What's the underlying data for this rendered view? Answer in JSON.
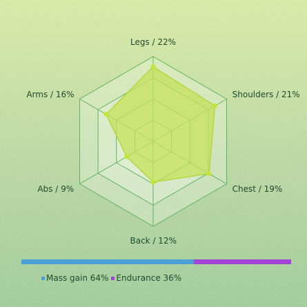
{
  "chart_data": {
    "type": "radar",
    "axes": [
      {
        "name": "Legs",
        "label": "Legs / 22%",
        "value": 22
      },
      {
        "name": "Shoulders",
        "label": "Shoulders / 21%",
        "value": 21
      },
      {
        "name": "Chest",
        "label": "Chest / 19%",
        "value": 19
      },
      {
        "name": "Back",
        "label": "Back / 12%",
        "value": 12
      },
      {
        "name": "Abs",
        "label": "Abs / 9%",
        "value": 9
      },
      {
        "name": "Arms",
        "label": "Arms / 16%",
        "value": 16
      }
    ],
    "range": [
      0,
      25
    ],
    "ring_count": 4,
    "colors": {
      "fill": "#c5e05a",
      "fill_opacity": 0.75,
      "outline": "#b4d63a",
      "point": "#c5e43a",
      "grid": "#5fb25f",
      "grid_fill": "#eef6e6"
    },
    "share_bar": [
      {
        "name": "Mass gain",
        "label": "Mass gain 64%",
        "value": 64,
        "color": "#4a9fd6"
      },
      {
        "name": "Endurance",
        "label": "Endurance 36%",
        "value": 36,
        "color": "#a444d6"
      }
    ]
  }
}
